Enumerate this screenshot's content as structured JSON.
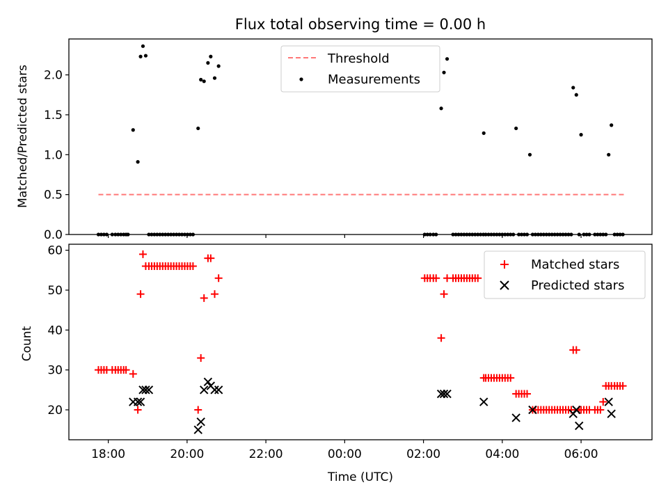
{
  "chart_data": [
    {
      "type": "scatter",
      "title": "Flux total observing time = 0.00 h",
      "xlabel": "",
      "ylabel": "Matched/Predicted stars",
      "xlim": [
        17.0,
        31.8
      ],
      "ylim": [
        0,
        2.45
      ],
      "yticks": [
        0.0,
        0.5,
        1.0,
        1.5,
        2.0
      ],
      "ytick_labels": [
        "0.0",
        "0.5",
        "1.0",
        "1.5",
        "2.0"
      ],
      "xticks": [
        18,
        20,
        22,
        24,
        26,
        28,
        30
      ],
      "xtick_labels": [],
      "legend": {
        "position": "top-center",
        "entries": [
          "Threshold",
          "Measurements"
        ]
      },
      "series": [
        {
          "name": "Threshold",
          "style": "dashed-line",
          "color": "#ff7777",
          "x": [
            17.75,
            31.1
          ],
          "y": [
            0.5,
            0.5
          ]
        },
        {
          "name": "Measurements",
          "style": "dot",
          "color": "#000000",
          "x": [
            17.75,
            17.82,
            17.89,
            17.96,
            18.1,
            18.18,
            18.25,
            18.32,
            18.39,
            18.45,
            18.5,
            18.63,
            18.75,
            18.82,
            18.88,
            18.95,
            19.03,
            19.1,
            19.17,
            19.24,
            19.31,
            19.38,
            19.45,
            19.52,
            19.59,
            19.66,
            19.73,
            19.8,
            19.87,
            19.94,
            20.01,
            20.08,
            20.15,
            20.28,
            20.35,
            20.43,
            20.53,
            20.6,
            20.7,
            20.8,
            26.03,
            26.1,
            26.17,
            26.25,
            26.32,
            26.45,
            26.52,
            26.6,
            26.75,
            26.82,
            26.89,
            26.96,
            27.03,
            27.1,
            27.17,
            27.24,
            27.31,
            27.38,
            27.45,
            27.52,
            27.53,
            27.58,
            27.65,
            27.72,
            27.79,
            27.86,
            27.93,
            28.0,
            28.07,
            28.14,
            28.21,
            28.28,
            28.35,
            28.42,
            28.49,
            28.56,
            28.63,
            28.7,
            28.77,
            28.84,
            28.91,
            28.98,
            29.05,
            29.12,
            29.19,
            29.26,
            29.33,
            29.4,
            29.47,
            29.54,
            29.61,
            29.68,
            29.75,
            29.8,
            29.88,
            29.95,
            30.0,
            30.07,
            30.14,
            30.21,
            30.35,
            30.42,
            30.49,
            30.56,
            30.63,
            30.7,
            30.77,
            30.85,
            30.92,
            30.99,
            31.06
          ],
          "y": [
            0,
            0,
            0,
            0,
            0,
            0,
            0,
            0,
            0,
            0,
            0,
            1.31,
            0.91,
            2.23,
            2.36,
            2.24,
            0,
            0,
            0,
            0,
            0,
            0,
            0,
            0,
            0,
            0,
            0,
            0,
            0,
            0,
            0,
            0,
            0,
            1.33,
            1.94,
            1.92,
            2.15,
            2.23,
            1.96,
            2.11,
            0,
            0,
            0,
            0,
            0,
            1.58,
            2.03,
            2.2,
            0,
            0,
            0,
            0,
            0,
            0,
            0,
            0,
            0,
            0,
            0,
            0,
            1.27,
            0,
            0,
            0,
            0,
            0,
            0,
            0,
            0,
            0,
            0,
            0,
            1.33,
            0,
            0,
            0,
            0,
            1.0,
            0,
            0,
            0,
            0,
            0,
            0,
            0,
            0,
            0,
            0,
            0,
            0,
            0,
            0,
            0,
            1.84,
            1.75,
            0,
            1.25,
            0,
            0,
            0,
            0,
            0,
            0,
            0,
            0,
            1.0,
            1.37,
            0,
            0,
            0,
            0
          ]
        }
      ]
    },
    {
      "type": "scatter",
      "title": "",
      "xlabel": "Time (UTC)",
      "ylabel": "Count",
      "xlim": [
        17.0,
        31.8
      ],
      "ylim": [
        12.5,
        61.5
      ],
      "yticks": [
        20,
        30,
        40,
        50,
        60
      ],
      "ytick_labels": [
        "20",
        "30",
        "40",
        "50",
        "60"
      ],
      "xticks": [
        18,
        20,
        22,
        24,
        26,
        28,
        30
      ],
      "xtick_labels": [
        "18:00",
        "20:00",
        "22:00",
        "00:00",
        "02:00",
        "04:00",
        "06:00"
      ],
      "legend": {
        "position": "top-right",
        "entries": [
          "Matched stars",
          "Predicted stars"
        ]
      },
      "series": [
        {
          "name": "Matched stars",
          "style": "plus",
          "color": "#ff0000",
          "x": [
            17.75,
            17.82,
            17.89,
            17.96,
            18.1,
            18.18,
            18.25,
            18.32,
            18.39,
            18.45,
            18.63,
            18.75,
            18.82,
            18.88,
            18.95,
            19.03,
            19.1,
            19.17,
            19.24,
            19.31,
            19.38,
            19.45,
            19.52,
            19.59,
            19.66,
            19.73,
            19.8,
            19.87,
            19.94,
            20.01,
            20.08,
            20.15,
            20.28,
            20.35,
            20.43,
            20.53,
            20.6,
            20.7,
            20.8,
            26.03,
            26.1,
            26.17,
            26.25,
            26.32,
            26.45,
            26.52,
            26.6,
            26.75,
            26.82,
            26.89,
            26.96,
            27.03,
            27.1,
            27.17,
            27.24,
            27.31,
            27.38,
            27.53,
            27.58,
            27.65,
            27.72,
            27.79,
            27.86,
            27.93,
            28.0,
            28.07,
            28.14,
            28.21,
            28.35,
            28.42,
            28.49,
            28.56,
            28.63,
            28.77,
            28.84,
            28.91,
            28.98,
            29.05,
            29.12,
            29.19,
            29.26,
            29.33,
            29.4,
            29.47,
            29.54,
            29.61,
            29.68,
            29.75,
            29.8,
            29.88,
            29.95,
            30.0,
            30.07,
            30.14,
            30.21,
            30.35,
            30.42,
            30.49,
            30.56,
            30.63,
            30.7,
            30.77,
            30.85,
            30.92,
            30.99,
            31.06
          ],
          "y": [
            30,
            30,
            30,
            30,
            30,
            30,
            30,
            30,
            30,
            30,
            29,
            20,
            49,
            59,
            56,
            56,
            56,
            56,
            56,
            56,
            56,
            56,
            56,
            56,
            56,
            56,
            56,
            56,
            56,
            56,
            56,
            56,
            20,
            33,
            48,
            58,
            58,
            49,
            53,
            53,
            53,
            53,
            53,
            53,
            38,
            49,
            53,
            53,
            53,
            53,
            53,
            53,
            53,
            53,
            53,
            53,
            53,
            28,
            28,
            28,
            28,
            28,
            28,
            28,
            28,
            28,
            28,
            28,
            24,
            24,
            24,
            24,
            24,
            20,
            20,
            20,
            20,
            20,
            20,
            20,
            20,
            20,
            20,
            20,
            20,
            20,
            20,
            20,
            35,
            35,
            20,
            20,
            20,
            20,
            20,
            20,
            20,
            20,
            22,
            26,
            26,
            26,
            26,
            26,
            26,
            26
          ]
        },
        {
          "name": "Predicted stars",
          "style": "x",
          "color": "#000000",
          "x": [
            18.63,
            18.75,
            18.82,
            18.88,
            18.95,
            19.03,
            20.28,
            20.35,
            20.43,
            20.53,
            20.6,
            20.7,
            20.8,
            26.45,
            26.52,
            26.6,
            27.53,
            28.35,
            28.77,
            29.8,
            29.88,
            29.95,
            30.7,
            30.77
          ],
          "y": [
            22,
            22,
            22,
            25,
            25,
            25,
            15,
            17,
            25,
            27,
            26,
            25,
            25,
            24,
            24,
            24,
            22,
            18,
            20,
            19,
            20,
            16,
            22,
            19
          ]
        }
      ]
    }
  ]
}
